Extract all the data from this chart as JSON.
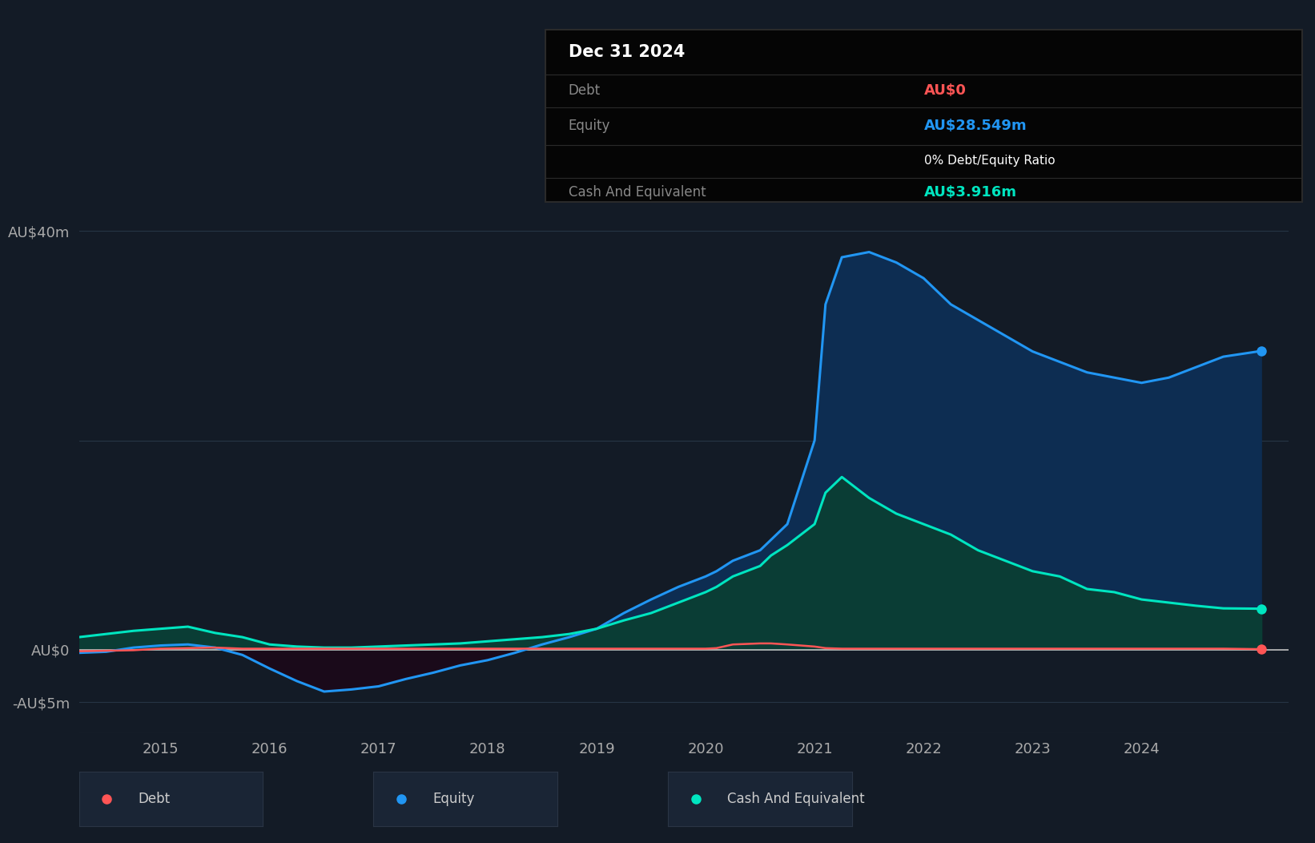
{
  "background_color": "#131b26",
  "plot_bg_color": "#131b26",
  "grid_color": "#263545",
  "zero_line_color": "#c0c0c0",
  "title_box": {
    "date": "Dec 31 2024",
    "debt_label": "Debt",
    "debt_value": "AU$0",
    "debt_color": "#ff5555",
    "equity_label": "Equity",
    "equity_value": "AU$28.549m",
    "equity_color": "#2196f3",
    "ratio_text": "0% Debt/Equity Ratio",
    "ratio_color": "#ffffff",
    "cash_label": "Cash And Equivalent",
    "cash_value": "AU$3.916m",
    "cash_color": "#00e5c0",
    "box_bg": "#050505",
    "box_border": "#2a2a2a"
  },
  "yticks": [
    "AU$40m",
    "",
    "AU$0",
    "-AU$5m"
  ],
  "ytick_values": [
    40,
    20,
    0,
    -5
  ],
  "ylim": [
    -8,
    50
  ],
  "xlim_start": 2014.25,
  "xlim_end": 2025.35,
  "xticks": [
    2015,
    2016,
    2017,
    2018,
    2019,
    2020,
    2021,
    2022,
    2023,
    2024
  ],
  "equity_color": "#2196f3",
  "equity_fill_pos": "#0d2d52",
  "equity_fill_neg": "#1a0a1a",
  "cash_color": "#00e5c0",
  "cash_fill": "#0a3d35",
  "debt_color": "#ff5555",
  "equity_x": [
    2014.25,
    2014.5,
    2014.75,
    2015.0,
    2015.25,
    2015.5,
    2015.75,
    2016.0,
    2016.25,
    2016.5,
    2016.75,
    2017.0,
    2017.25,
    2017.5,
    2017.75,
    2018.0,
    2018.25,
    2018.5,
    2018.75,
    2019.0,
    2019.25,
    2019.5,
    2019.75,
    2020.0,
    2020.1,
    2020.25,
    2020.5,
    2020.6,
    2020.75,
    2021.0,
    2021.1,
    2021.25,
    2021.5,
    2021.75,
    2022.0,
    2022.25,
    2022.5,
    2022.75,
    2023.0,
    2023.25,
    2023.5,
    2023.75,
    2024.0,
    2024.25,
    2024.5,
    2024.75,
    2025.1
  ],
  "equity_y": [
    -0.3,
    -0.2,
    0.2,
    0.4,
    0.5,
    0.2,
    -0.5,
    -1.8,
    -3.0,
    -4.0,
    -3.8,
    -3.5,
    -2.8,
    -2.2,
    -1.5,
    -1.0,
    -0.3,
    0.5,
    1.2,
    2.0,
    3.5,
    4.8,
    6.0,
    7.0,
    7.5,
    8.5,
    9.5,
    10.5,
    12.0,
    20.0,
    33.0,
    37.5,
    38.0,
    37.0,
    35.5,
    33.0,
    31.5,
    30.0,
    28.5,
    27.5,
    26.5,
    26.0,
    25.5,
    26.0,
    27.0,
    28.0,
    28.549
  ],
  "cash_x": [
    2014.25,
    2014.5,
    2014.75,
    2015.0,
    2015.25,
    2015.5,
    2015.75,
    2016.0,
    2016.25,
    2016.5,
    2016.75,
    2017.0,
    2017.25,
    2017.5,
    2017.75,
    2018.0,
    2018.25,
    2018.5,
    2018.75,
    2019.0,
    2019.25,
    2019.5,
    2019.75,
    2020.0,
    2020.1,
    2020.25,
    2020.5,
    2020.6,
    2020.75,
    2021.0,
    2021.1,
    2021.25,
    2021.5,
    2021.75,
    2022.0,
    2022.25,
    2022.5,
    2022.75,
    2023.0,
    2023.25,
    2023.5,
    2023.75,
    2024.0,
    2024.25,
    2024.5,
    2024.75,
    2025.1
  ],
  "cash_y": [
    1.2,
    1.5,
    1.8,
    2.0,
    2.2,
    1.6,
    1.2,
    0.5,
    0.3,
    0.2,
    0.2,
    0.3,
    0.4,
    0.5,
    0.6,
    0.8,
    1.0,
    1.2,
    1.5,
    2.0,
    2.8,
    3.5,
    4.5,
    5.5,
    6.0,
    7.0,
    8.0,
    9.0,
    10.0,
    12.0,
    15.0,
    16.5,
    14.5,
    13.0,
    12.0,
    11.0,
    9.5,
    8.5,
    7.5,
    7.0,
    5.8,
    5.5,
    4.8,
    4.5,
    4.2,
    3.95,
    3.916
  ],
  "debt_x": [
    2014.25,
    2014.5,
    2014.75,
    2015.0,
    2015.25,
    2015.5,
    2015.75,
    2016.0,
    2016.25,
    2016.5,
    2016.75,
    2017.0,
    2017.25,
    2017.5,
    2017.75,
    2018.0,
    2018.25,
    2018.5,
    2018.75,
    2019.0,
    2019.25,
    2019.5,
    2019.75,
    2020.0,
    2020.1,
    2020.25,
    2020.5,
    2020.6,
    2020.75,
    2021.0,
    2021.1,
    2021.25,
    2021.5,
    2021.75,
    2022.0,
    2022.25,
    2022.5,
    2022.75,
    2023.0,
    2023.25,
    2023.5,
    2023.75,
    2024.0,
    2024.25,
    2024.5,
    2024.75,
    2025.1
  ],
  "debt_y": [
    -0.15,
    -0.1,
    -0.05,
    0.1,
    0.15,
    0.2,
    0.1,
    0.1,
    0.1,
    0.1,
    0.1,
    0.1,
    0.1,
    0.1,
    0.1,
    0.1,
    0.1,
    0.1,
    0.1,
    0.1,
    0.1,
    0.1,
    0.1,
    0.1,
    0.15,
    0.5,
    0.6,
    0.6,
    0.5,
    0.3,
    0.15,
    0.1,
    0.1,
    0.1,
    0.1,
    0.1,
    0.1,
    0.1,
    0.1,
    0.1,
    0.1,
    0.1,
    0.1,
    0.1,
    0.1,
    0.1,
    0.05
  ],
  "legend_items": [
    {
      "label": "Debt",
      "color": "#ff5555"
    },
    {
      "label": "Equity",
      "color": "#2196f3"
    },
    {
      "label": "Cash And Equivalent",
      "color": "#00e5c0"
    }
  ]
}
